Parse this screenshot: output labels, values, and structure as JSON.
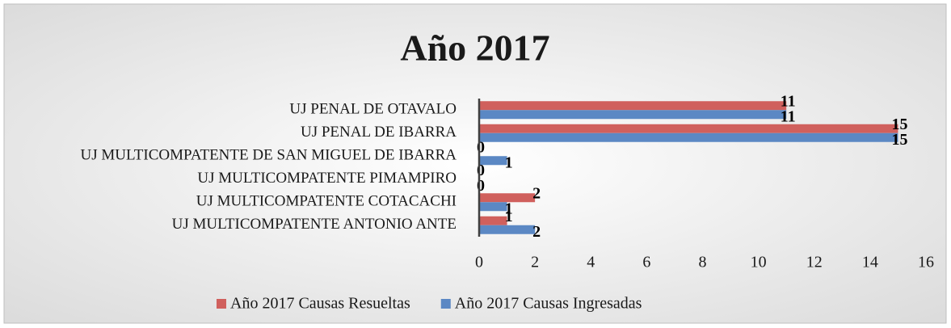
{
  "chart_data": {
    "type": "bar",
    "orientation": "horizontal",
    "title": "Año 2017",
    "categories": [
      "UJ PENAL DE OTAVALO",
      "UJ PENAL DE IBARRA",
      "UJ MULTICOMPATENTE DE SAN MIGUEL DE IBARRA",
      "UJ MULTICOMPATENTE PIMAMPIRO",
      "UJ MULTICOMPATENTE COTACACHI",
      "UJ MULTICOMPATENTE ANTONIO ANTE"
    ],
    "series": [
      {
        "name": "Año 2017 Causas Resueltas",
        "color": "#d0605d",
        "values": [
          11,
          15,
          0,
          0,
          2,
          1
        ]
      },
      {
        "name": "Año 2017 Causas Ingresadas",
        "color": "#5b88c4",
        "values": [
          11,
          15,
          1,
          0,
          1,
          2
        ]
      }
    ],
    "xlim": [
      0,
      16
    ],
    "xticks": [
      0,
      2,
      4,
      6,
      8,
      10,
      12,
      14,
      16
    ],
    "grid": false,
    "legend": "bottom"
  }
}
